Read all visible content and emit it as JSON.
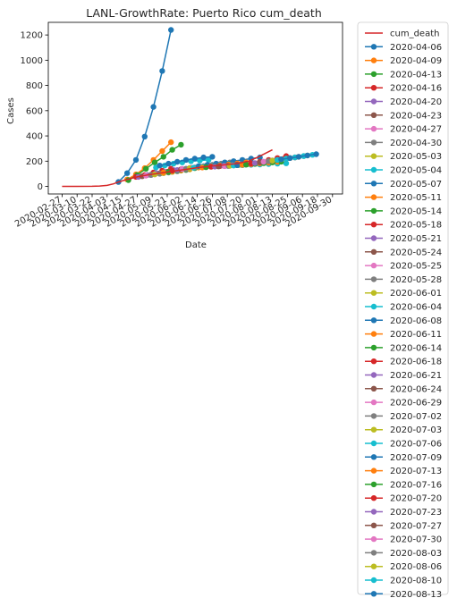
{
  "chart_data": {
    "type": "line",
    "title": "LANL-GrowthRate: Puerto Rico cum_death",
    "xlabel": "Date",
    "ylabel": "Cases",
    "xlim": [
      "2020-02-16",
      "2020-10-08"
    ],
    "ylim": [
      -60,
      1300
    ],
    "x_ticks": [
      "2020-02-27",
      "2020-03-10",
      "2020-03-22",
      "2020-04-03",
      "2020-04-15",
      "2020-04-27",
      "2020-05-09",
      "2020-05-21",
      "2020-06-02",
      "2020-06-14",
      "2020-06-26",
      "2020-07-08",
      "2020-07-20",
      "2020-08-01",
      "2020-08-13",
      "2020-08-25",
      "2020-09-06",
      "2020-09-18",
      "2020-09-30"
    ],
    "y_ticks": [
      0,
      200,
      400,
      600,
      800,
      1000,
      1200
    ],
    "grid": false,
    "legend_position": "outside-right",
    "observed": {
      "name": "cum_death",
      "color": "#d62728",
      "x": [
        "2020-02-27",
        "2020-03-10",
        "2020-03-22",
        "2020-03-28",
        "2020-04-03",
        "2020-04-08",
        "2020-04-12",
        "2020-04-17",
        "2020-04-22",
        "2020-04-27",
        "2020-05-05",
        "2020-05-15",
        "2020-05-25",
        "2020-06-05",
        "2020-06-15",
        "2020-06-25",
        "2020-07-05",
        "2020-07-15",
        "2020-07-25",
        "2020-08-01",
        "2020-08-07",
        "2020-08-13"
      ],
      "y": [
        0,
        0,
        1,
        3,
        8,
        20,
        35,
        50,
        63,
        75,
        90,
        105,
        120,
        135,
        150,
        160,
        170,
        180,
        200,
        230,
        260,
        290
      ]
    },
    "series": [
      {
        "name": "2020-04-06",
        "color": "#1f77b4",
        "x": [
          "2020-04-12",
          "2020-04-19",
          "2020-04-26",
          "2020-05-03",
          "2020-05-10",
          "2020-05-17",
          "2020-05-24"
        ],
        "y": [
          35,
          105,
          210,
          395,
          630,
          915,
          1240
        ]
      },
      {
        "name": "2020-04-09",
        "color": "#ff7f0e",
        "x": [
          "2020-04-19",
          "2020-04-26",
          "2020-05-03",
          "2020-05-10",
          "2020-05-17",
          "2020-05-24"
        ],
        "y": [
          55,
          95,
          145,
          210,
          280,
          350
        ]
      },
      {
        "name": "2020-04-13",
        "color": "#2ca02c",
        "x": [
          "2020-04-20",
          "2020-04-27",
          "2020-05-04",
          "2020-05-11",
          "2020-05-18",
          "2020-05-25",
          "2020-06-01"
        ],
        "y": [
          50,
          90,
          140,
          190,
          235,
          290,
          330
        ]
      },
      {
        "name": "2020-04-16",
        "color": "#d62728",
        "x": [
          "2020-04-26",
          "2020-05-03",
          "2020-05-10",
          "2020-05-17",
          "2020-05-24"
        ],
        "y": [
          75,
          90,
          110,
          125,
          140
        ]
      },
      {
        "name": "2020-04-20",
        "color": "#9467bd",
        "x": [
          "2020-04-28",
          "2020-05-05",
          "2020-05-12",
          "2020-05-19",
          "2020-05-26"
        ],
        "y": [
          75,
          90,
          105,
          115,
          130
        ]
      },
      {
        "name": "2020-04-23",
        "color": "#8c564b",
        "x": [
          "2020-05-01",
          "2020-05-08",
          "2020-05-15",
          "2020-05-22",
          "2020-05-29"
        ],
        "y": [
          80,
          92,
          102,
          112,
          122
        ]
      },
      {
        "name": "2020-04-27",
        "color": "#e377c2",
        "x": [
          "2020-05-04",
          "2020-05-11",
          "2020-05-18",
          "2020-05-25",
          "2020-06-01"
        ],
        "y": [
          85,
          95,
          105,
          115,
          125
        ]
      },
      {
        "name": "2020-04-30",
        "color": "#7f7f7f",
        "x": [
          "2020-05-08",
          "2020-05-15",
          "2020-05-22",
          "2020-05-29",
          "2020-06-05"
        ],
        "y": [
          90,
          100,
          110,
          120,
          130
        ]
      },
      {
        "name": "2020-05-03",
        "color": "#bcbd22",
        "x": [
          "2020-05-11",
          "2020-05-18",
          "2020-05-25",
          "2020-06-01",
          "2020-06-08"
        ],
        "y": [
          95,
          105,
          115,
          125,
          135
        ]
      },
      {
        "name": "2020-05-04",
        "color": "#17becf",
        "x": [
          "2020-05-12",
          "2020-05-19",
          "2020-05-26",
          "2020-06-02",
          "2020-06-09",
          "2020-06-16",
          "2020-06-23"
        ],
        "y": [
          150,
          165,
          180,
          190,
          200,
          205,
          210
        ]
      },
      {
        "name": "2020-05-07",
        "color": "#1f77b4",
        "x": [
          "2020-05-15",
          "2020-05-22",
          "2020-05-29",
          "2020-06-05",
          "2020-06-12",
          "2020-06-19",
          "2020-06-26"
        ],
        "y": [
          165,
          180,
          195,
          210,
          220,
          230,
          235
        ]
      },
      {
        "name": "2020-05-11",
        "color": "#ff7f0e",
        "x": [
          "2020-05-18",
          "2020-05-25",
          "2020-06-01",
          "2020-06-08",
          "2020-06-15"
        ],
        "y": [
          110,
          120,
          130,
          140,
          150
        ]
      },
      {
        "name": "2020-05-14",
        "color": "#2ca02c",
        "x": [
          "2020-05-22",
          "2020-05-29",
          "2020-06-05",
          "2020-06-12",
          "2020-06-19",
          "2020-06-26"
        ],
        "y": [
          115,
          125,
          135,
          145,
          155,
          165
        ]
      },
      {
        "name": "2020-05-18",
        "color": "#d62728",
        "x": [
          "2020-05-25",
          "2020-06-01",
          "2020-06-08",
          "2020-06-15",
          "2020-06-22"
        ],
        "y": [
          125,
          135,
          145,
          155,
          165
        ]
      },
      {
        "name": "2020-05-21",
        "color": "#9467bd",
        "x": [
          "2020-05-29",
          "2020-06-05",
          "2020-06-12",
          "2020-06-19",
          "2020-06-26"
        ],
        "y": [
          130,
          140,
          150,
          160,
          170
        ]
      },
      {
        "name": "2020-05-24",
        "color": "#8c564b",
        "x": [
          "2020-06-01",
          "2020-06-08",
          "2020-06-15",
          "2020-06-22",
          "2020-06-29"
        ],
        "y": [
          135,
          145,
          155,
          165,
          175
        ]
      },
      {
        "name": "2020-05-25",
        "color": "#e377c2",
        "x": [
          "2020-06-02",
          "2020-06-09",
          "2020-06-16",
          "2020-06-23",
          "2020-06-30"
        ],
        "y": [
          138,
          148,
          158,
          168,
          178
        ]
      },
      {
        "name": "2020-05-28",
        "color": "#7f7f7f",
        "x": [
          "2020-06-05",
          "2020-06-12",
          "2020-06-19",
          "2020-06-26",
          "2020-07-03",
          "2020-07-10"
        ],
        "y": [
          140,
          150,
          160,
          170,
          180,
          190
        ]
      },
      {
        "name": "2020-06-01",
        "color": "#bcbd22",
        "x": [
          "2020-06-08",
          "2020-06-15",
          "2020-06-22",
          "2020-06-29",
          "2020-07-06"
        ],
        "y": [
          145,
          155,
          165,
          175,
          185
        ]
      },
      {
        "name": "2020-06-04",
        "color": "#17becf",
        "x": [
          "2020-06-11",
          "2020-06-18",
          "2020-06-25",
          "2020-07-02",
          "2020-07-09"
        ],
        "y": [
          148,
          156,
          164,
          172,
          180
        ]
      },
      {
        "name": "2020-06-08",
        "color": "#1f77b4",
        "x": [
          "2020-06-15",
          "2020-06-22",
          "2020-06-29",
          "2020-07-06",
          "2020-07-13",
          "2020-07-20",
          "2020-07-27",
          "2020-08-03"
        ],
        "y": [
          160,
          170,
          180,
          190,
          200,
          210,
          220,
          230
        ]
      },
      {
        "name": "2020-06-11",
        "color": "#ff7f0e",
        "x": [
          "2020-06-18",
          "2020-06-25",
          "2020-07-02",
          "2020-07-09",
          "2020-07-16",
          "2020-07-23"
        ],
        "y": [
          150,
          158,
          166,
          174,
          182,
          190
        ]
      },
      {
        "name": "2020-06-14",
        "color": "#2ca02c",
        "x": [
          "2020-06-21",
          "2020-06-28",
          "2020-07-05",
          "2020-07-12",
          "2020-07-19"
        ],
        "y": [
          152,
          158,
          164,
          170,
          176
        ]
      },
      {
        "name": "2020-06-18",
        "color": "#d62728",
        "x": [
          "2020-06-25",
          "2020-07-02",
          "2020-07-09",
          "2020-07-16",
          "2020-07-23"
        ],
        "y": [
          155,
          161,
          167,
          173,
          179
        ]
      },
      {
        "name": "2020-06-21",
        "color": "#9467bd",
        "x": [
          "2020-06-28",
          "2020-07-05",
          "2020-07-12",
          "2020-07-19",
          "2020-07-26"
        ],
        "y": [
          157,
          163,
          169,
          175,
          181
        ]
      },
      {
        "name": "2020-06-24",
        "color": "#8c564b",
        "x": [
          "2020-07-01",
          "2020-07-08",
          "2020-07-15",
          "2020-07-22",
          "2020-07-29"
        ],
        "y": [
          158,
          164,
          170,
          176,
          182
        ]
      },
      {
        "name": "2020-06-29",
        "color": "#e377c2",
        "x": [
          "2020-07-06",
          "2020-07-13",
          "2020-07-20",
          "2020-07-27",
          "2020-08-03"
        ],
        "y": [
          160,
          166,
          172,
          178,
          184
        ]
      },
      {
        "name": "2020-07-02",
        "color": "#7f7f7f",
        "x": [
          "2020-07-09",
          "2020-07-16",
          "2020-07-23",
          "2020-07-30",
          "2020-08-06"
        ],
        "y": [
          162,
          168,
          174,
          180,
          186
        ]
      },
      {
        "name": "2020-07-03",
        "color": "#bcbd22",
        "x": [
          "2020-07-10",
          "2020-07-17",
          "2020-07-24",
          "2020-07-31",
          "2020-08-07"
        ],
        "y": [
          163,
          169,
          175,
          181,
          187
        ]
      },
      {
        "name": "2020-07-06",
        "color": "#17becf",
        "x": [
          "2020-07-13",
          "2020-07-20",
          "2020-07-27",
          "2020-08-03",
          "2020-08-10",
          "2020-08-17",
          "2020-08-24"
        ],
        "y": [
          165,
          168,
          171,
          174,
          177,
          180,
          183
        ]
      },
      {
        "name": "2020-07-09",
        "color": "#1f77b4",
        "x": [
          "2020-07-16",
          "2020-07-23",
          "2020-07-30",
          "2020-08-06",
          "2020-08-13"
        ],
        "y": [
          168,
          174,
          180,
          186,
          192
        ]
      },
      {
        "name": "2020-07-13",
        "color": "#ff7f0e",
        "x": [
          "2020-07-20",
          "2020-07-27",
          "2020-08-03",
          "2020-08-10",
          "2020-08-17"
        ],
        "y": [
          170,
          176,
          182,
          188,
          194
        ]
      },
      {
        "name": "2020-07-16",
        "color": "#2ca02c",
        "x": [
          "2020-07-23",
          "2020-07-30",
          "2020-08-06",
          "2020-08-13",
          "2020-08-20"
        ],
        "y": [
          172,
          178,
          184,
          190,
          196
        ]
      },
      {
        "name": "2020-07-20",
        "color": "#d62728",
        "x": [
          "2020-07-27",
          "2020-08-03",
          "2020-08-10",
          "2020-08-17",
          "2020-08-24"
        ],
        "y": [
          180,
          195,
          210,
          225,
          240
        ]
      },
      {
        "name": "2020-07-23",
        "color": "#9467bd",
        "x": [
          "2020-07-30",
          "2020-08-06",
          "2020-08-13",
          "2020-08-20",
          "2020-08-27"
        ],
        "y": [
          185,
          195,
          205,
          215,
          225
        ]
      },
      {
        "name": "2020-07-27",
        "color": "#8c564b",
        "x": [
          "2020-08-03",
          "2020-08-10",
          "2020-08-17",
          "2020-08-24",
          "2020-08-31"
        ],
        "y": [
          190,
          200,
          210,
          220,
          230
        ]
      },
      {
        "name": "2020-07-30",
        "color": "#e377c2",
        "x": [
          "2020-08-06",
          "2020-08-13",
          "2020-08-20",
          "2020-08-27",
          "2020-09-03"
        ],
        "y": [
          195,
          205,
          215,
          225,
          235
        ]
      },
      {
        "name": "2020-08-03",
        "color": "#7f7f7f",
        "x": [
          "2020-08-10",
          "2020-08-17",
          "2020-08-24",
          "2020-08-31",
          "2020-09-07"
        ],
        "y": [
          200,
          210,
          220,
          230,
          240
        ]
      },
      {
        "name": "2020-08-06",
        "color": "#bcbd22",
        "x": [
          "2020-08-13",
          "2020-08-20",
          "2020-08-27",
          "2020-09-03",
          "2020-09-10"
        ],
        "y": [
          205,
          215,
          225,
          235,
          245
        ]
      },
      {
        "name": "2020-08-10",
        "color": "#17becf",
        "x": [
          "2020-08-17",
          "2020-08-24",
          "2020-08-31",
          "2020-09-07",
          "2020-09-14"
        ],
        "y": [
          210,
          220,
          230,
          240,
          250
        ]
      },
      {
        "name": "2020-08-13",
        "color": "#1f77b4",
        "x": [
          "2020-08-20",
          "2020-08-27",
          "2020-09-03",
          "2020-09-10",
          "2020-09-17"
        ],
        "y": [
          215,
          225,
          235,
          245,
          255
        ]
      }
    ]
  }
}
